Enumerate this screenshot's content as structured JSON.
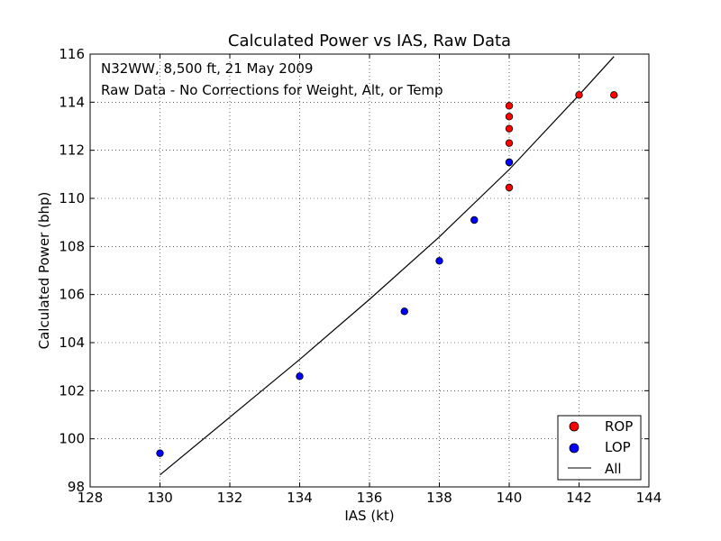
{
  "chart_data": {
    "type": "scatter",
    "title": "Calculated Power vs IAS, Raw Data",
    "xlabel": "IAS (kt)",
    "ylabel": "Calculated Power (bhp)",
    "xlim": [
      128,
      144
    ],
    "ylim": [
      98,
      116
    ],
    "xticks": [
      "128",
      "130",
      "132",
      "134",
      "136",
      "138",
      "140",
      "142",
      "144"
    ],
    "yticks": [
      "98",
      "100",
      "102",
      "104",
      "106",
      "108",
      "110",
      "112",
      "114",
      "116"
    ],
    "grid": true,
    "legend_position": "bottom-right",
    "annotations": [
      "N32WW, 8,500 ft, 21 May 2009",
      "Raw Data - No Corrections for Weight, Alt, or Temp"
    ],
    "series": [
      {
        "name": "ROP",
        "kind": "scatter",
        "color": "#ff0000",
        "points": [
          {
            "x": 140,
            "y": 113.85
          },
          {
            "x": 140,
            "y": 113.4
          },
          {
            "x": 140,
            "y": 112.9
          },
          {
            "x": 140,
            "y": 112.3
          },
          {
            "x": 140,
            "y": 111.5
          },
          {
            "x": 140,
            "y": 110.45
          },
          {
            "x": 142,
            "y": 114.3
          },
          {
            "x": 143,
            "y": 114.3
          }
        ]
      },
      {
        "name": "LOP",
        "kind": "scatter",
        "color": "#0000ff",
        "points": [
          {
            "x": 130,
            "y": 99.4
          },
          {
            "x": 134,
            "y": 102.6
          },
          {
            "x": 137,
            "y": 105.3
          },
          {
            "x": 138,
            "y": 107.4
          },
          {
            "x": 139,
            "y": 109.1
          },
          {
            "x": 140,
            "y": 111.5
          }
        ]
      },
      {
        "name": "All",
        "kind": "line",
        "color": "#000000",
        "points": [
          {
            "x": 130,
            "y": 98.5
          },
          {
            "x": 132,
            "y": 100.9
          },
          {
            "x": 134,
            "y": 103.3
          },
          {
            "x": 136,
            "y": 105.8
          },
          {
            "x": 138,
            "y": 108.4
          },
          {
            "x": 140,
            "y": 111.2
          },
          {
            "x": 142,
            "y": 114.3
          },
          {
            "x": 143,
            "y": 115.9
          }
        ]
      }
    ]
  }
}
